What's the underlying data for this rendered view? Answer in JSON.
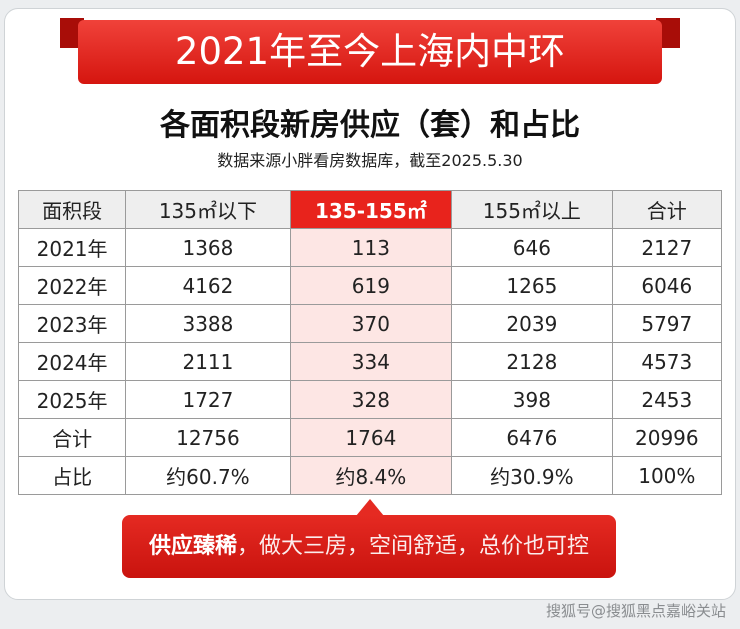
{
  "header": {
    "banner": "2021年至今上海内中环",
    "title": "各面积段新房供应（套）和占比",
    "source": "数据来源小胖看房数据库，截至2025.5.30"
  },
  "table": {
    "columns": [
      "面积段",
      "135㎡以下",
      "135-155㎡",
      "155㎡以上",
      "合计"
    ],
    "rows": [
      [
        "2021年",
        1368,
        113,
        646,
        2127
      ],
      [
        "2022年",
        4162,
        619,
        1265,
        6046
      ],
      [
        "2023年",
        3388,
        370,
        2039,
        5797
      ],
      [
        "2024年",
        2111,
        334,
        2128,
        4573
      ],
      [
        "2025年",
        1727,
        328,
        398,
        2453
      ],
      [
        "合计",
        12756,
        1764,
        6476,
        20996
      ],
      [
        "占比",
        "约60.7%",
        "约8.4%",
        "约30.9%",
        "100%"
      ]
    ]
  },
  "callout": {
    "highlight": "供应臻稀",
    "text": "，做大三房，空间舒适，总价也可控"
  },
  "watermark": "搜狐号@搜狐黑点嘉峪关站"
}
